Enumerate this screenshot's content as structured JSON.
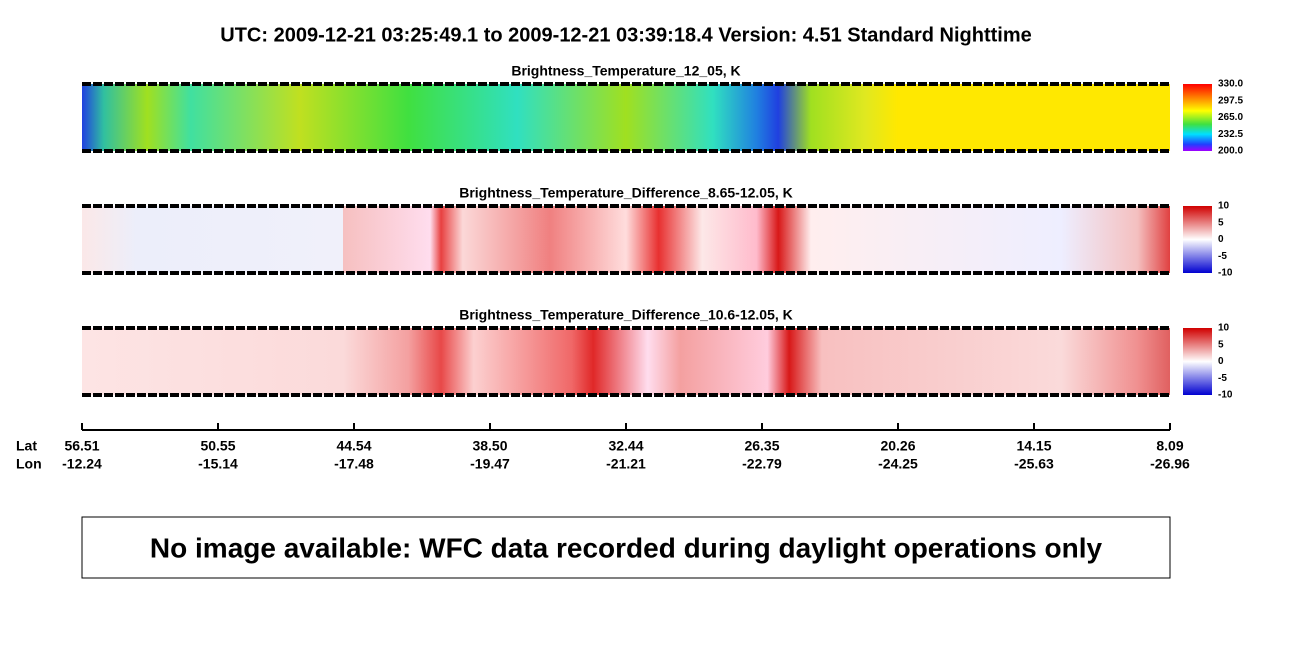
{
  "header": {
    "title": "UTC:  2009-12-21   03:25:49.1  to  2009-12-21   03:39:18.4    Version: 4.51  Standard Nighttime"
  },
  "panels": [
    {
      "title": "Brightness_Temperature_12_05, K",
      "colorbar": [
        "330.0",
        "297.5",
        "265.0",
        "232.5",
        "200.0"
      ]
    },
    {
      "title": "Brightness_Temperature_Difference_8.65-12.05, K",
      "colorbar": [
        "10",
        "5",
        "0",
        "-5",
        "-10"
      ]
    },
    {
      "title": "Brightness_Temperature_Difference_10.6-12.05, K",
      "colorbar": [
        "10",
        "5",
        "0",
        "-5",
        "-10"
      ]
    }
  ],
  "axis": {
    "lat_label": "Lat",
    "lon_label": "Lon",
    "lat": [
      "56.51",
      "50.55",
      "44.54",
      "38.50",
      "32.44",
      "26.35",
      "20.26",
      "14.15",
      "8.09"
    ],
    "lon": [
      "-12.24",
      "-15.14",
      "-17.48",
      "-19.47",
      "-21.21",
      "-22.79",
      "-24.25",
      "-25.63",
      "-26.96"
    ]
  },
  "note": "No image available: WFC data recorded during daylight operations only"
}
